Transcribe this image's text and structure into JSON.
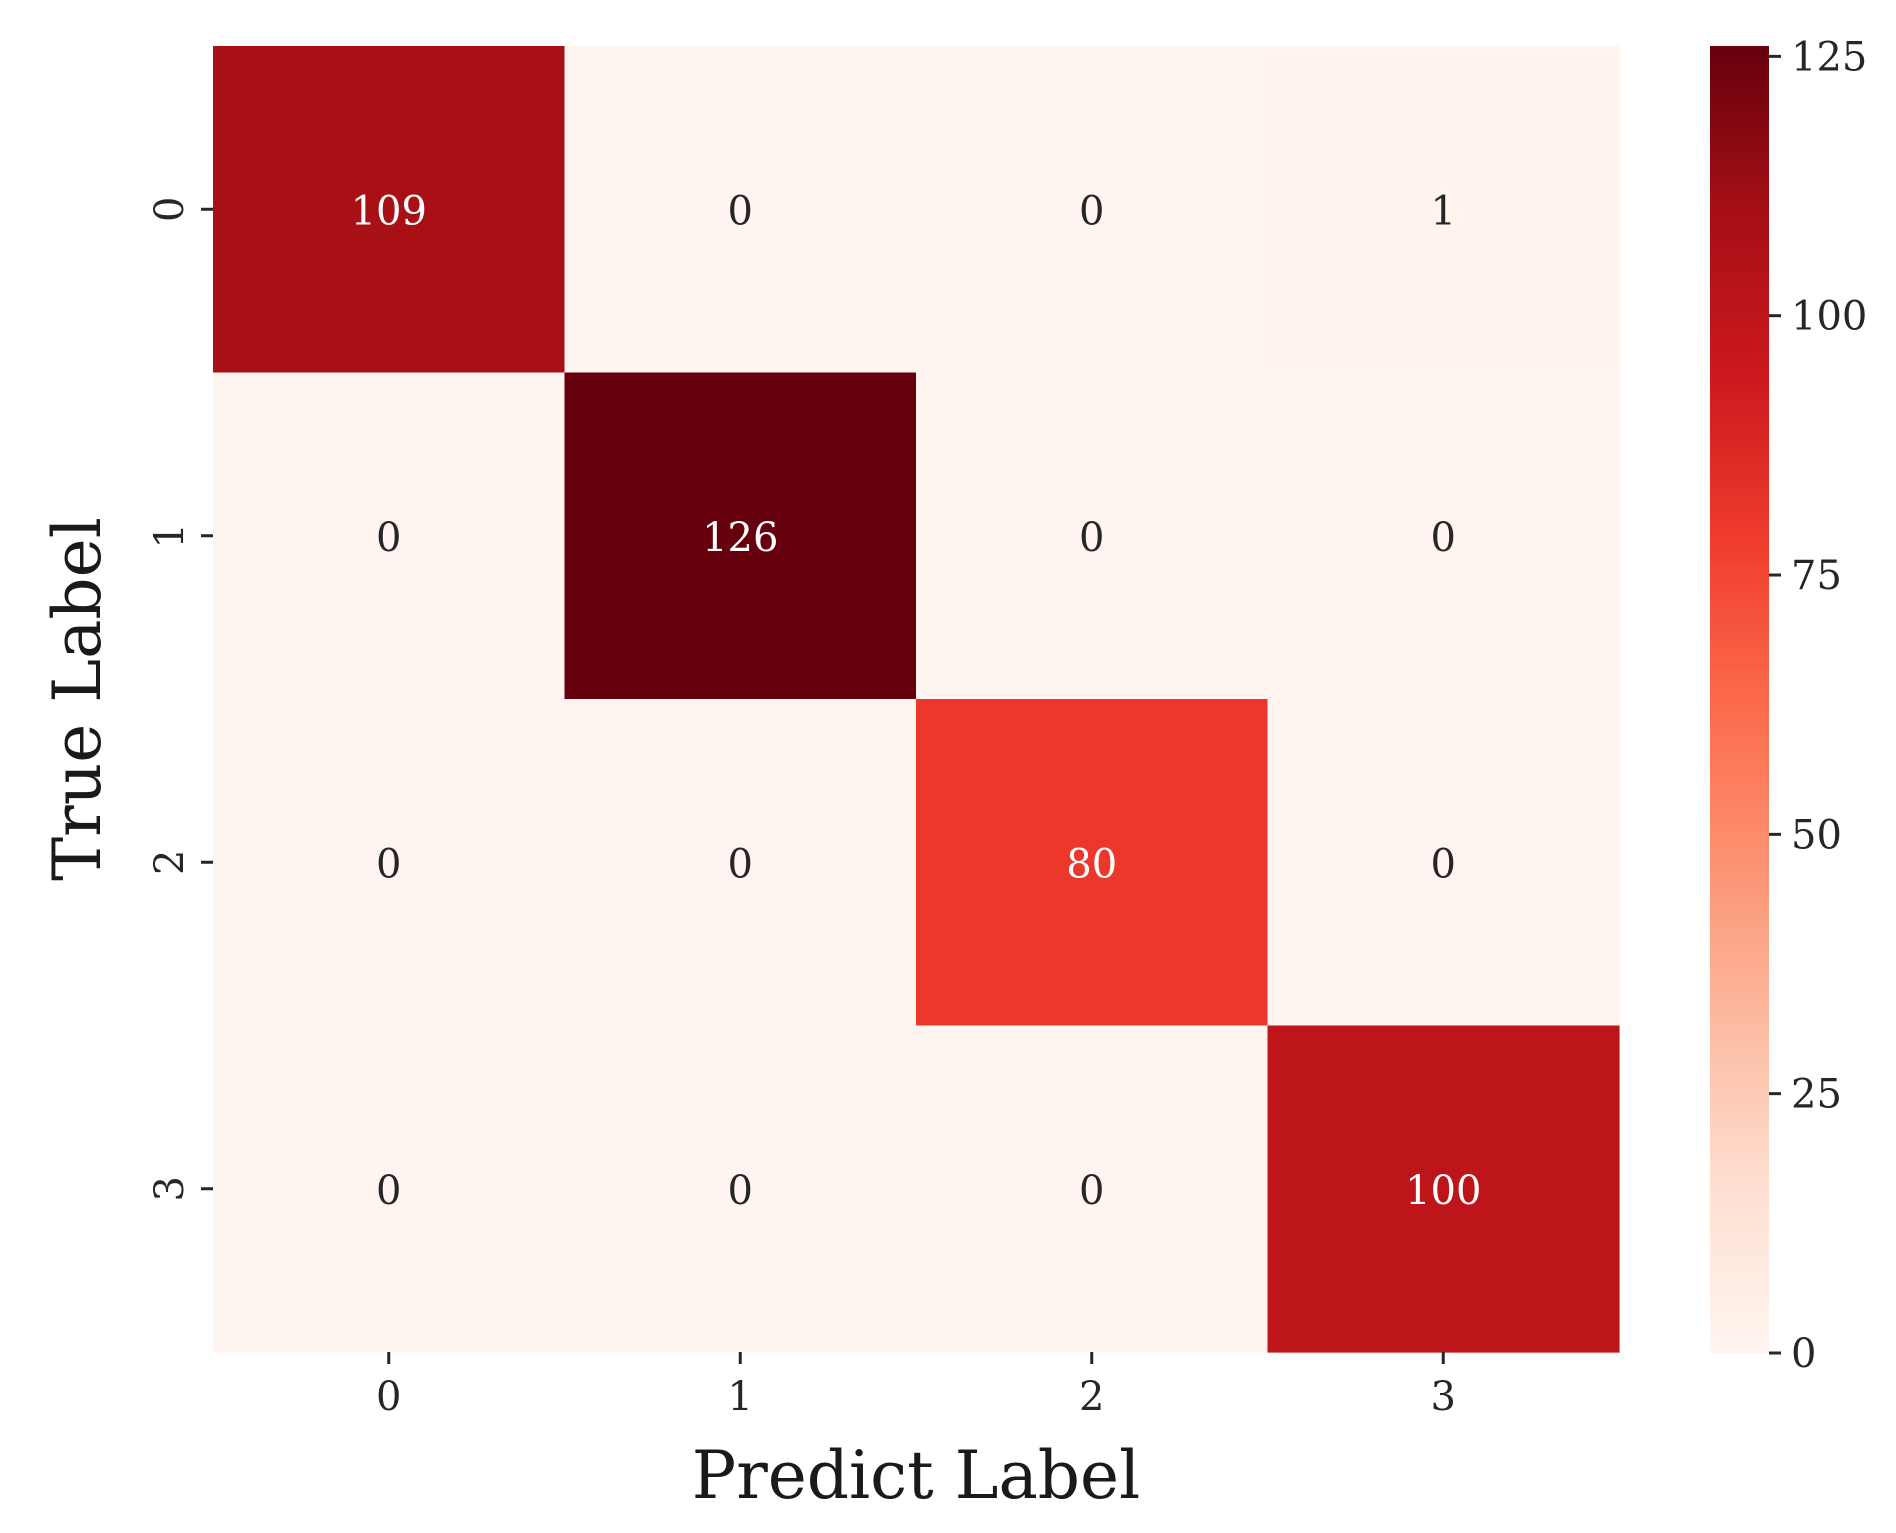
{
  "chart_data": {
    "type": "heatmap",
    "title": "",
    "xlabel": "Predict Label",
    "ylabel": "True Label",
    "x_categories": [
      "0",
      "1",
      "2",
      "3"
    ],
    "y_categories": [
      "0",
      "1",
      "2",
      "3"
    ],
    "matrix": [
      [
        109,
        0,
        0,
        1
      ],
      [
        0,
        126,
        0,
        0
      ],
      [
        0,
        0,
        80,
        0
      ],
      [
        0,
        0,
        0,
        100
      ]
    ],
    "colorbar": {
      "range": [
        0,
        126
      ],
      "ticks": [
        0,
        25,
        50,
        75,
        100,
        125
      ],
      "tick_labels": [
        "0",
        "25",
        "50",
        "75",
        "100",
        "125"
      ],
      "colormap": "Reds",
      "position": "right"
    },
    "grid": false,
    "colormap_stops": [
      "#fff5f0",
      "#fee0d2",
      "#fcbba1",
      "#fc9272",
      "#fb6a4a",
      "#ef3b2c",
      "#cb181d",
      "#a50f15",
      "#67000d"
    ]
  }
}
